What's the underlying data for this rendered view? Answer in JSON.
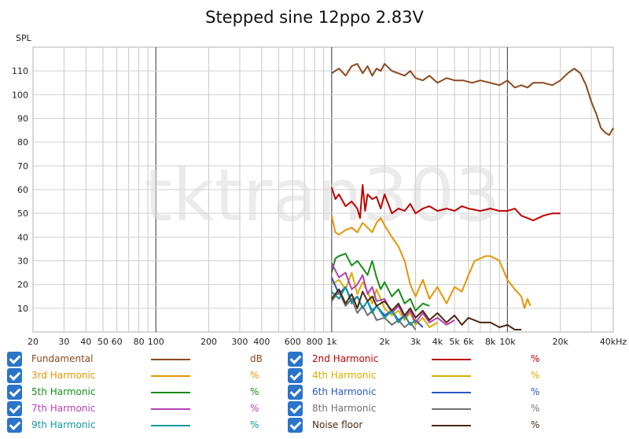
{
  "chart_data": {
    "type": "line",
    "title": "Stepped sine 12ppo 2.83V",
    "ylabel": "SPL",
    "x_scale": "log",
    "xlim": [
      20,
      40000
    ],
    "ylim": [
      0,
      120
    ],
    "y_ticks": [
      10,
      20,
      30,
      40,
      50,
      60,
      70,
      80,
      90,
      100,
      110
    ],
    "x_ticks": [
      {
        "v": 20,
        "label": "20"
      },
      {
        "v": 30,
        "label": "30"
      },
      {
        "v": 40,
        "label": "40"
      },
      {
        "v": 50,
        "label": "50"
      },
      {
        "v": 60,
        "label": "60"
      },
      {
        "v": 80,
        "label": "80"
      },
      {
        "v": 100,
        "label": "100"
      },
      {
        "v": 200,
        "label": "200"
      },
      {
        "v": 300,
        "label": "300"
      },
      {
        "v": 400,
        "label": "400"
      },
      {
        "v": 600,
        "label": "600"
      },
      {
        "v": 800,
        "label": "800"
      },
      {
        "v": 1000,
        "label": "1k"
      },
      {
        "v": 2000,
        "label": "2k"
      },
      {
        "v": 3000,
        "label": "3k"
      },
      {
        "v": 4000,
        "label": "4k"
      },
      {
        "v": 5000,
        "label": "5k"
      },
      {
        "v": 6000,
        "label": "6k"
      },
      {
        "v": 8000,
        "label": "8k"
      },
      {
        "v": 10000,
        "label": "10k"
      },
      {
        "v": 20000,
        "label": "20k"
      },
      {
        "v": 40000,
        "label": "40kHz"
      }
    ],
    "watermark": "tktran303",
    "series": [
      {
        "name": "Fundamental",
        "unit": "dB",
        "color": "#8b4a1c",
        "x": [
          1000,
          1100,
          1200,
          1300,
          1400,
          1500,
          1600,
          1700,
          1800,
          1900,
          2000,
          2200,
          2400,
          2600,
          2800,
          3000,
          3300,
          3600,
          4000,
          4500,
          5000,
          5600,
          6300,
          7000,
          8000,
          9000,
          10000,
          11000,
          12000,
          13000,
          14000,
          16000,
          18000,
          20000,
          22000,
          24000,
          26000,
          28000,
          30000,
          32000,
          34000,
          36000,
          38000,
          40000
        ],
        "y": [
          109,
          111,
          108,
          112,
          113,
          109,
          112,
          108,
          111,
          110,
          113,
          110,
          109,
          108,
          110,
          107,
          106,
          108,
          105,
          107,
          106,
          106,
          105,
          106,
          105,
          104,
          106,
          103,
          104,
          103,
          105,
          105,
          104,
          106,
          109,
          111,
          109,
          104,
          97,
          92,
          86,
          84,
          83,
          86
        ]
      },
      {
        "name": "2nd Harmonic",
        "unit": "%",
        "color": "#c00000",
        "x": [
          1000,
          1050,
          1100,
          1200,
          1300,
          1400,
          1450,
          1500,
          1550,
          1600,
          1700,
          1800,
          1900,
          2000,
          2100,
          2200,
          2400,
          2600,
          2800,
          3000,
          3300,
          3600,
          4000,
          4500,
          5000,
          5500,
          6000,
          7000,
          8000,
          9000,
          10000,
          11000,
          12000,
          13000,
          14000,
          16000,
          18000,
          20000
        ],
        "y": [
          61,
          56,
          58,
          53,
          55,
          52,
          48,
          62,
          51,
          58,
          56,
          57,
          52,
          58,
          54,
          50,
          52,
          51,
          54,
          50,
          52,
          53,
          51,
          52,
          51,
          53,
          52,
          51,
          52,
          51,
          51,
          52,
          49,
          48,
          47,
          49,
          50,
          50
        ]
      },
      {
        "name": "3rd Harmonic",
        "unit": "%",
        "color": "#e69500",
        "x": [
          1000,
          1050,
          1100,
          1200,
          1300,
          1400,
          1500,
          1600,
          1700,
          1800,
          1900,
          2000,
          2200,
          2400,
          2600,
          2800,
          3000,
          3300,
          3600,
          4000,
          4500,
          5000,
          5500,
          6000,
          6500,
          7000,
          7500,
          8000,
          8500,
          9000,
          10000,
          11000,
          12000,
          12500,
          13000,
          13500
        ],
        "y": [
          49,
          42,
          41,
          43,
          44,
          42,
          46,
          44,
          42,
          46,
          48,
          45,
          40,
          36,
          30,
          20,
          15,
          22,
          14,
          19,
          12,
          19,
          17,
          24,
          30,
          31,
          32,
          32,
          31,
          30,
          22,
          18,
          15,
          10,
          14,
          11
        ]
      },
      {
        "name": "4th Harmonic",
        "unit": "%",
        "color": "#d4b000",
        "x": [
          1000,
          1100,
          1200,
          1300,
          1400,
          1500,
          1600,
          1700,
          1800,
          2000,
          2200,
          2400,
          2600,
          2800,
          3000,
          3300,
          3600,
          4000
        ],
        "y": [
          20,
          22,
          18,
          25,
          16,
          21,
          17,
          12,
          18,
          10,
          7,
          9,
          5,
          8,
          3,
          6,
          2,
          4
        ]
      },
      {
        "name": "5th Harmonic",
        "unit": "%",
        "color": "#1a8c1a",
        "x": [
          1000,
          1050,
          1100,
          1200,
          1300,
          1400,
          1500,
          1600,
          1700,
          1800,
          1900,
          2000,
          2200,
          2400,
          2600,
          2800,
          3000,
          3300,
          3600
        ],
        "y": [
          25,
          31,
          32,
          33,
          28,
          30,
          27,
          24,
          30,
          23,
          18,
          21,
          15,
          18,
          12,
          14,
          9,
          12,
          11
        ]
      },
      {
        "name": "6th Harmonic",
        "unit": "%",
        "color": "#2b57c4",
        "x": [
          1000,
          1100,
          1200,
          1300,
          1400,
          1500,
          1600,
          1700,
          1800,
          2000,
          2200,
          2400,
          2600,
          2800,
          3000,
          3300
        ],
        "y": [
          23,
          16,
          19,
          13,
          15,
          10,
          13,
          9,
          11,
          7,
          9,
          5,
          7,
          3,
          5,
          2
        ]
      },
      {
        "name": "7th Harmonic",
        "unit": "%",
        "color": "#b83fb8",
        "x": [
          1000,
          1100,
          1200,
          1300,
          1400,
          1500,
          1600,
          1700,
          1800,
          2000,
          2200,
          2400,
          2600,
          2800,
          3000,
          3300,
          3600,
          4000,
          4500,
          5000
        ],
        "y": [
          29,
          23,
          25,
          18,
          20,
          24,
          16,
          19,
          13,
          14,
          8,
          11,
          6,
          9,
          4,
          8,
          4,
          6,
          3,
          5
        ]
      },
      {
        "name": "8th Harmonic",
        "unit": "%",
        "color": "#707070",
        "x": [
          1000,
          1100,
          1200,
          1300,
          1400,
          1500,
          1600,
          1700,
          1800,
          2000,
          2200,
          2400,
          2600,
          2800,
          3000
        ],
        "y": [
          13,
          17,
          11,
          14,
          8,
          11,
          7,
          9,
          5,
          6,
          3,
          5,
          2,
          4,
          1
        ]
      },
      {
        "name": "9th Harmonic",
        "unit": "%",
        "color": "#0f9a9a",
        "x": [
          1000,
          1100,
          1200,
          1300,
          1400,
          1500,
          1600,
          1700,
          1800,
          2000,
          2200,
          2400,
          2600,
          2800,
          3000
        ],
        "y": [
          17,
          14,
          19,
          12,
          15,
          10,
          13,
          8,
          11,
          6,
          9,
          4,
          7,
          3,
          5
        ]
      },
      {
        "name": "Noise floor",
        "unit": "%",
        "color": "#4a2a12",
        "x": [
          1000,
          1100,
          1200,
          1300,
          1400,
          1500,
          1600,
          1700,
          1800,
          2000,
          2200,
          2400,
          2600,
          2800,
          3000,
          3300,
          3600,
          4000,
          4500,
          5000,
          5500,
          6000,
          7000,
          8000,
          9000,
          10000,
          11000,
          12000
        ],
        "y": [
          14,
          18,
          12,
          16,
          10,
          17,
          13,
          15,
          11,
          13,
          9,
          12,
          7,
          10,
          6,
          9,
          5,
          8,
          4,
          7,
          3,
          6,
          4,
          4,
          2,
          3,
          1,
          1
        ]
      }
    ]
  }
}
